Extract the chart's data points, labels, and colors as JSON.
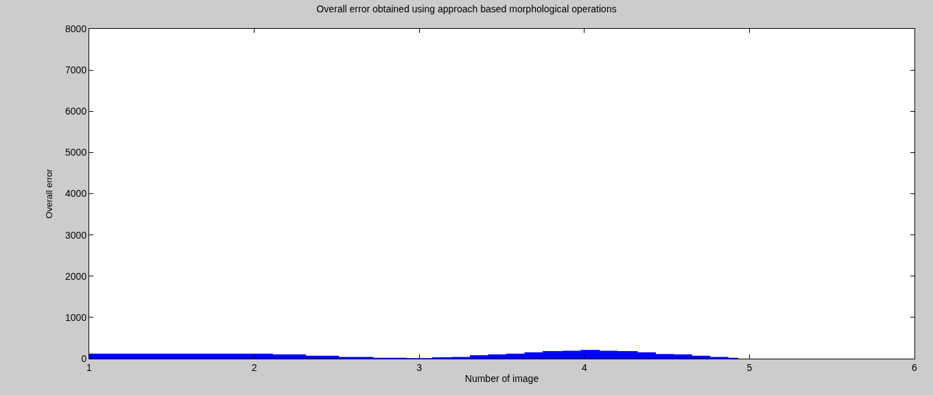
{
  "chart_data": {
    "type": "area",
    "title": "Overall error obtained using approach based morphological operations",
    "xlabel": "Number of image",
    "ylabel": "Overall error",
    "x": [
      1,
      2.11,
      2.31,
      2.51,
      2.72,
      2.92,
      3.08,
      3.2,
      3.31,
      3.42,
      3.53,
      3.64,
      3.75,
      3.87,
      3.98,
      4.09,
      4.2,
      4.32,
      4.43,
      4.54,
      4.65,
      4.76,
      4.87,
      4.93
    ],
    "series": [
      {
        "color": "#0000ff",
        "values": [
          110,
          90,
          60,
          30,
          10,
          0,
          20,
          30,
          70,
          90,
          110,
          140,
          170,
          180,
          200,
          180,
          170,
          140,
          100,
          90,
          60,
          30,
          10,
          0
        ]
      }
    ],
    "xlim": [
      1,
      6
    ],
    "xticks": [
      1,
      2,
      3,
      4,
      5,
      6
    ],
    "ylim": [
      0,
      8000
    ],
    "yticks": [
      0,
      1000,
      2000,
      3000,
      4000,
      5000,
      6000,
      7000,
      8000
    ]
  }
}
